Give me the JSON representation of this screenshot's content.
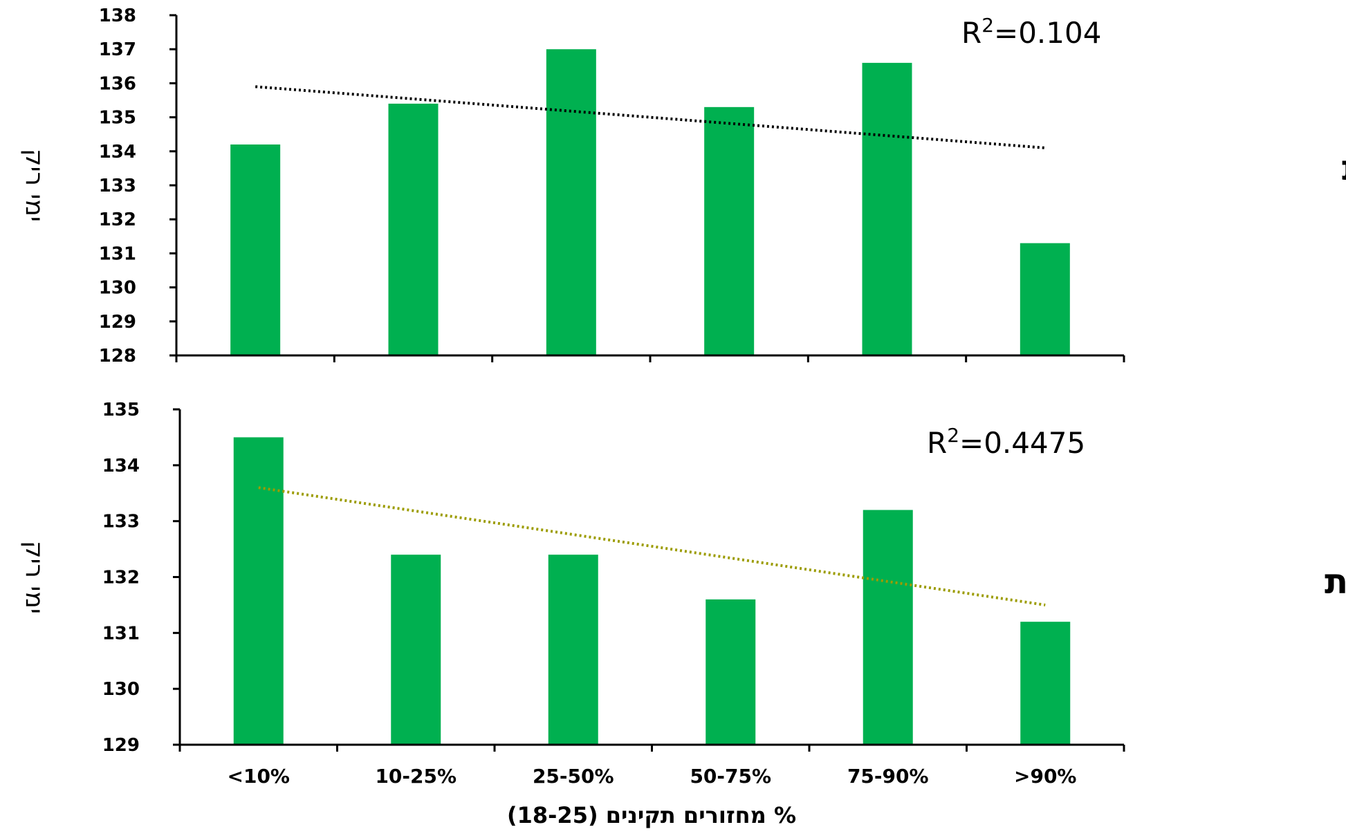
{
  "chart_data": [
    {
      "type": "bar",
      "group_label": "מבכירות",
      "ylabel": "ימי ריק",
      "ylim": [
        128,
        138
      ],
      "yticks": [
        "128",
        "129",
        "130",
        "131",
        "132",
        "133",
        "134",
        "135",
        "136",
        "137",
        "138"
      ],
      "categories": [
        "<10%",
        "10-25%",
        "25-50%",
        "50-75%",
        "75-90%",
        ">90%"
      ],
      "values": [
        134.2,
        135.4,
        137.0,
        135.3,
        136.6,
        131.3
      ],
      "bar_color": "#00b050",
      "trendline": {
        "start": 135.9,
        "end": 134.1,
        "color": "#000000",
        "r2_prefix": "R",
        "r2_sup": "2",
        "r2_value": "=0.104"
      }
    },
    {
      "type": "bar",
      "group_label": "בוגרות",
      "ylabel": "ימי ריק",
      "ylim": [
        129,
        135
      ],
      "yticks": [
        "129",
        "130",
        "131",
        "132",
        "133",
        "134",
        "135"
      ],
      "categories": [
        "<10%",
        "10-25%",
        "25-50%",
        "50-75%",
        "75-90%",
        ">90%"
      ],
      "values": [
        134.5,
        132.4,
        132.4,
        131.6,
        133.2,
        131.2
      ],
      "bar_color": "#00b050",
      "trendline": {
        "start": 133.6,
        "end": 131.5,
        "color": "#9c9c00",
        "r2_prefix": "R",
        "r2_sup": "2",
        "r2_value": "=0.4475"
      }
    }
  ],
  "xlabel": "% מחזורים תקינים (18-25)"
}
